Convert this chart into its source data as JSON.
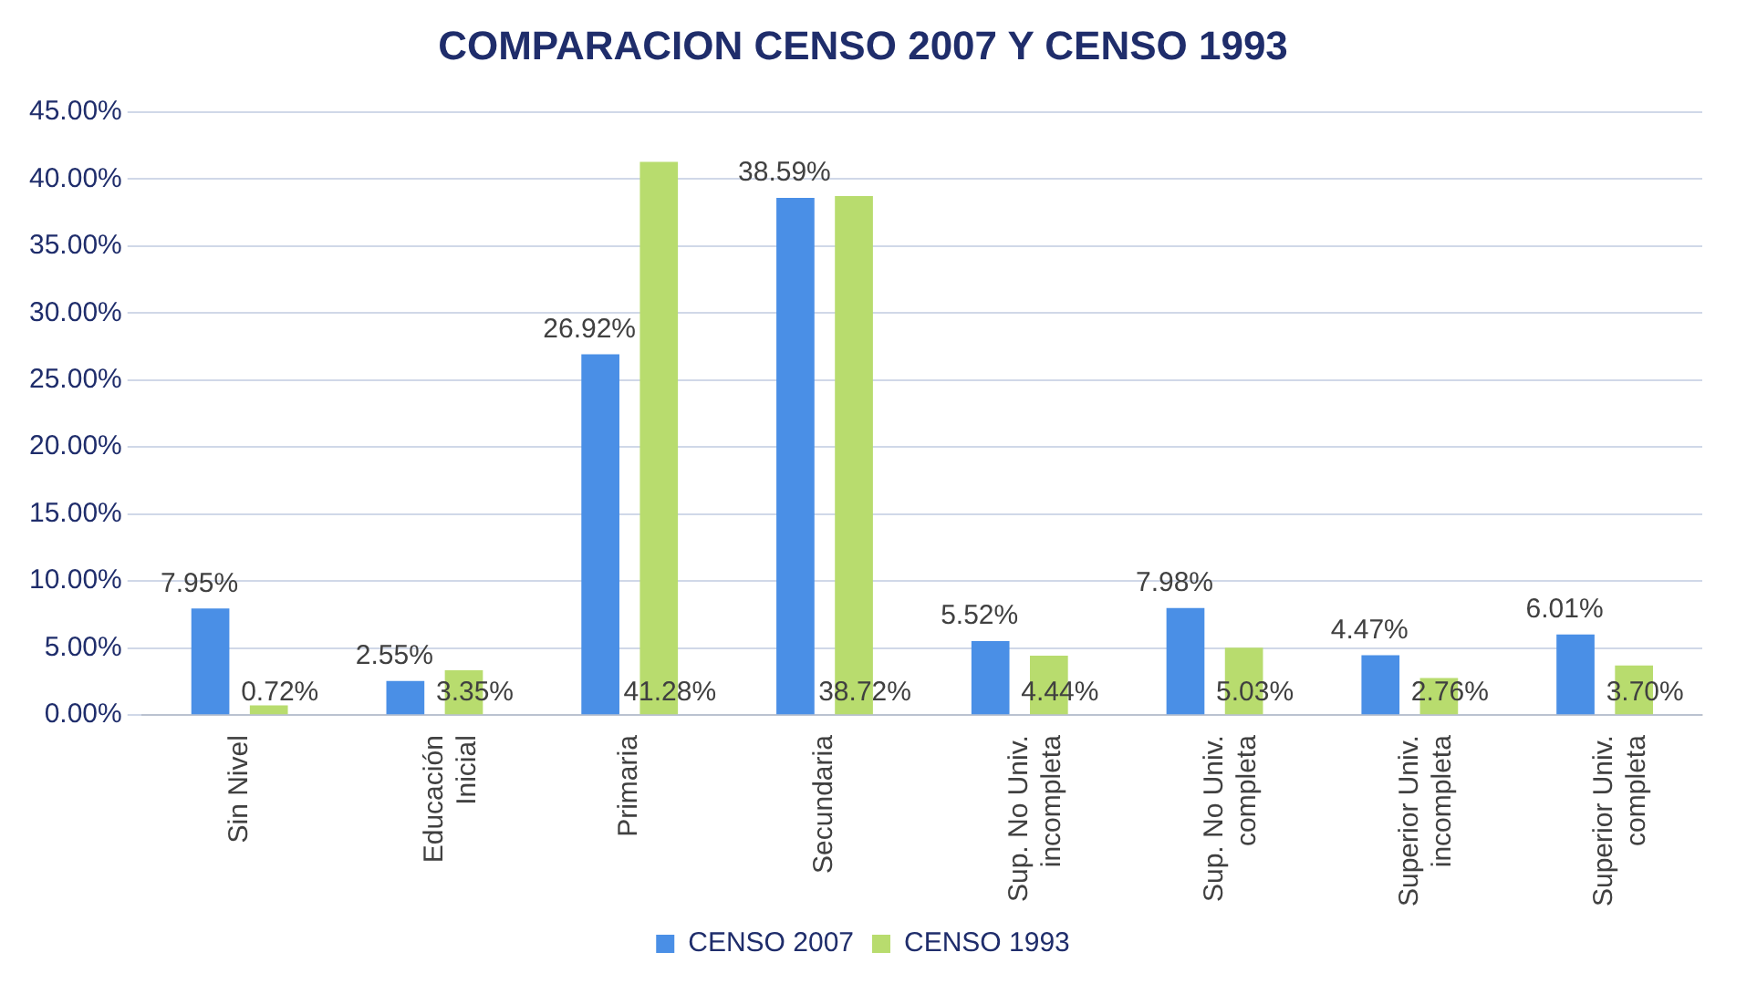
{
  "chart_data": {
    "type": "bar",
    "title": "COMPARACION CENSO 2007 Y CENSO 1993",
    "categories": [
      "Sin Nivel",
      "Educación Inicial",
      "Primaria",
      "Secundaria",
      "Sup. No Univ. incompleta",
      "Sup. No Univ. completa",
      "Superior Univ. incompleta",
      "Superior Univ. completa"
    ],
    "series": [
      {
        "name": "CENSO 2007",
        "color": "#4a8fe6",
        "values": [
          7.95,
          2.55,
          26.92,
          38.59,
          5.52,
          7.98,
          4.47,
          6.01
        ],
        "value_labels": [
          "7.95%",
          "2.55%",
          "26.92%",
          "38.59%",
          "5.52%",
          "7.98%",
          "4.47%",
          "6.01%"
        ]
      },
      {
        "name": "CENSO 1993",
        "color": "#b8dc6e",
        "values": [
          0.72,
          3.35,
          41.28,
          38.72,
          4.44,
          5.03,
          2.76,
          3.7
        ],
        "value_labels": [
          "0.72%",
          "3.35%",
          "41.28%",
          "38.72%",
          "4.44%",
          "5.03%",
          "2.76%",
          "3.70%"
        ]
      }
    ],
    "ylim": [
      0,
      45
    ],
    "yticks": [
      {
        "value": 0,
        "label": "0.00%"
      },
      {
        "value": 5,
        "label": "5.00%"
      },
      {
        "value": 10,
        "label": "10.00%"
      },
      {
        "value": 15,
        "label": "15.00%"
      },
      {
        "value": 20,
        "label": "20.00%"
      },
      {
        "value": 25,
        "label": "25.00%"
      },
      {
        "value": 30,
        "label": "30.00%"
      },
      {
        "value": 35,
        "label": "35.00%"
      },
      {
        "value": 40,
        "label": "40.00%"
      },
      {
        "value": 45,
        "label": "45.00%"
      }
    ],
    "grid": "y",
    "legend": "bottom"
  }
}
